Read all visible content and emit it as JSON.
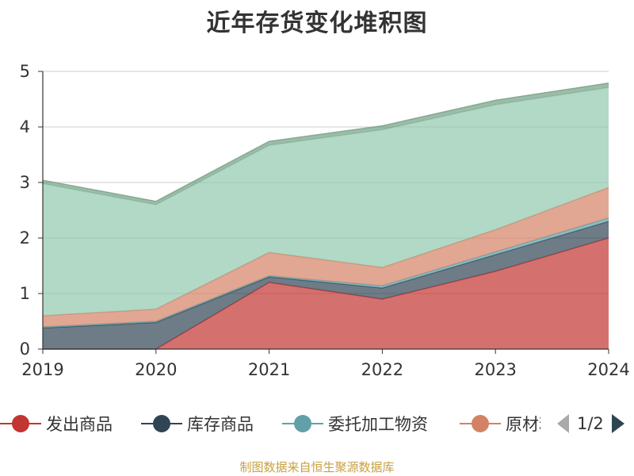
{
  "title": "近年存货变化堆积图",
  "source_text": "制图数据来自恒生聚源数据库",
  "legend_page": "1/2",
  "chart_data": {
    "type": "area",
    "stacked": true,
    "title": "近年存货变化堆积图",
    "categories": [
      "2019",
      "2020",
      "2021",
      "2022",
      "2023",
      "2024"
    ],
    "ylim": [
      0,
      5
    ],
    "yticks": [
      "0",
      "1",
      "2",
      "3",
      "4",
      "5"
    ],
    "grid": true,
    "legend_position": "bottom",
    "series": [
      {
        "name": "发出商品",
        "color": "#c23531",
        "values": [
          0,
          0,
          1.2,
          0.9,
          1.4,
          2.0
        ]
      },
      {
        "name": "库存商品",
        "color": "#2f4554",
        "values": [
          0.38,
          0.48,
          0.1,
          0.2,
          0.3,
          0.3
        ]
      },
      {
        "name": "委托加工物资",
        "color": "#61a0a8",
        "values": [
          0.02,
          0.02,
          0.02,
          0.04,
          0.05,
          0.06
        ]
      },
      {
        "name": "原材料",
        "color": "#d48265",
        "values": [
          0.2,
          0.22,
          0.42,
          0.33,
          0.4,
          0.55
        ]
      },
      {
        "name": "",
        "color": "#91c7ae",
        "values": [
          2.38,
          1.88,
          1.93,
          2.48,
          2.25,
          1.8
        ]
      },
      {
        "name": "",
        "color": "#749f83",
        "values": [
          0.06,
          0.06,
          0.07,
          0.07,
          0.08,
          0.08
        ]
      }
    ]
  }
}
